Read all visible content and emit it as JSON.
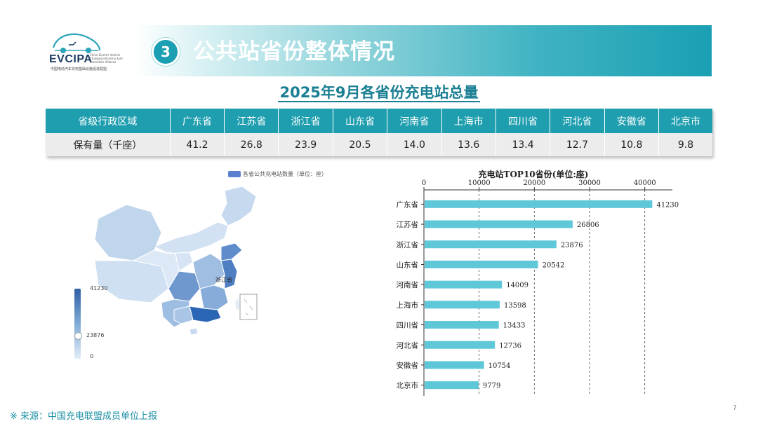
{
  "logo": {
    "name": "EVCIPA",
    "org": "中国电动汽车充电基础设施促进联盟",
    "side": "China Electric Vehicle Charging Infrastructure Promotion Alliance"
  },
  "header": {
    "section_number": "3",
    "title": "公共站省份整体情况"
  },
  "subtitle": "2025年9月各省份充电站总量",
  "table": {
    "columns": [
      "省级行政区域",
      "广东省",
      "江苏省",
      "浙江省",
      "山东省",
      "河南省",
      "上海市",
      "四川省",
      "河北省",
      "安徽省",
      "北京市"
    ],
    "row": [
      "保有量（千座）",
      "41.2",
      "26.8",
      "23.9",
      "20.5",
      "14.0",
      "13.6",
      "13.4",
      "12.7",
      "10.8",
      "9.8"
    ]
  },
  "map": {
    "legend_label": "各省公共充电站数量（单位：座）",
    "visualmap": {
      "max_label": "41230",
      "current_label": "23876",
      "min_label": "0"
    },
    "highlight_label": "浙江省"
  },
  "chart_data": {
    "type": "bar",
    "title": "充电站TOP10省份(单位:座)",
    "orientation": "horizontal",
    "categories": [
      "广东省",
      "江苏省",
      "浙江省",
      "山东省",
      "河南省",
      "上海市",
      "四川省",
      "河北省",
      "安徽省",
      "北京市"
    ],
    "values": [
      41230,
      26806,
      23876,
      20542,
      14009,
      13598,
      13433,
      12736,
      10754,
      9779
    ],
    "value_labels": [
      "41230",
      "26806",
      "23876",
      "20542",
      "14009",
      "13598",
      "13433",
      "12736",
      "10754",
      "9779"
    ],
    "x_ticks": [
      "0",
      "10000",
      "20000",
      "30000",
      "40000"
    ],
    "xlim": [
      0,
      45000
    ],
    "grid": true,
    "bar_color": "#5fc8d8"
  },
  "footer": {
    "source": "※ 来源：中国充电联盟成员单位上报",
    "page": "7"
  }
}
